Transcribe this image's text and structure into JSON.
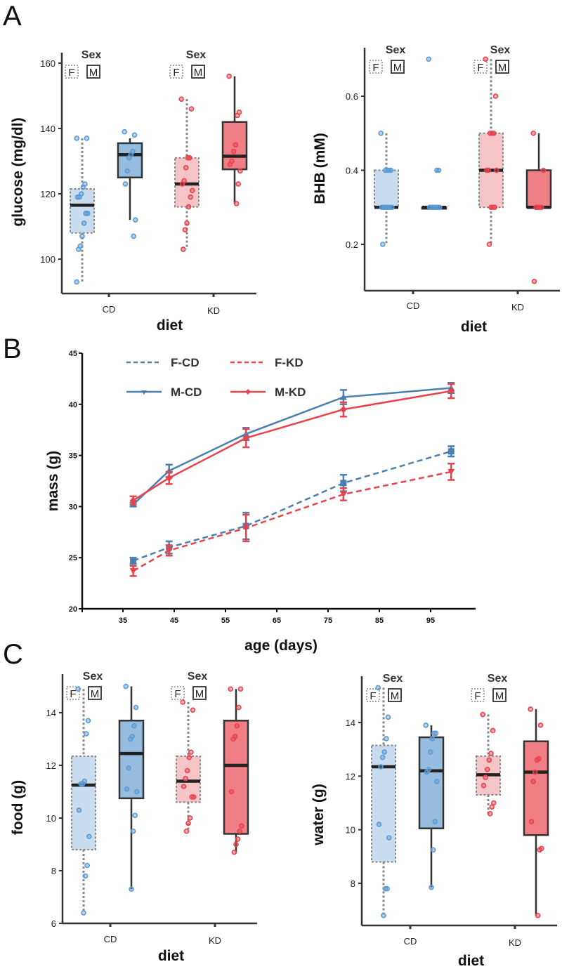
{
  "figure": {
    "panel_letters": [
      "A",
      "B",
      "C"
    ],
    "colors": {
      "cd": "#5b9bd5",
      "cd_line": "#4a7fb0",
      "kd": "#e8434d",
      "f_cd_fill": "#c9dcee",
      "m_cd_fill": "#96bde0",
      "f_kd_fill": "#f5c4c6",
      "m_kd_fill": "#ef7f84",
      "axis": "#333333"
    }
  },
  "chart_data": [
    {
      "id": "glucose",
      "panel": "A",
      "type": "box",
      "title": "",
      "xlabel": "diet",
      "ylabel": "glucose  (mg/dl)",
      "categories": [
        "CD",
        "KD"
      ],
      "yticks": [
        100,
        120,
        140,
        160
      ],
      "ylim": [
        89,
        163
      ],
      "legend": {
        "title": "Sex",
        "keys": [
          "F",
          "M"
        ],
        "placement": "top"
      },
      "groups": [
        {
          "diet": "CD",
          "sex": "F",
          "q1": 108,
          "median": 116.5,
          "q3": 121.5,
          "whisker_low": 93,
          "whisker_high": 137,
          "points": [
            137,
            137,
            123,
            122,
            120,
            119,
            119,
            114,
            114,
            111,
            107,
            104,
            103,
            93
          ]
        },
        {
          "diet": "CD",
          "sex": "M",
          "q1": 125,
          "median": 132,
          "q3": 135.5,
          "whisker_low": 112,
          "whisker_high": 137,
          "points": [
            139,
            138,
            133,
            132,
            131,
            127,
            123,
            112,
            107
          ]
        },
        {
          "diet": "KD",
          "sex": "F",
          "q1": 116,
          "median": 123,
          "q3": 131,
          "whisker_low": 103,
          "whisker_high": 149,
          "points": [
            149,
            146,
            131,
            131,
            128,
            124,
            123,
            121,
            119,
            116,
            111,
            109,
            103
          ]
        },
        {
          "diet": "KD",
          "sex": "M",
          "q1": 127.5,
          "median": 131.5,
          "q3": 142,
          "whisker_low": 117,
          "whisker_high": 156,
          "points": [
            156,
            145,
            144,
            135,
            133,
            130,
            129,
            127,
            123,
            117
          ]
        }
      ]
    },
    {
      "id": "bhb",
      "panel": "A",
      "type": "box",
      "title": "",
      "xlabel": "diet",
      "ylabel": "BHB (mM)",
      "categories": [
        "CD",
        "KD"
      ],
      "yticks": [
        0.2,
        0.4,
        0.6
      ],
      "ylim": [
        0.075,
        0.73
      ],
      "legend": {
        "title": "Sex",
        "keys": [
          "F",
          "M"
        ],
        "placement": "top"
      },
      "groups": [
        {
          "diet": "CD",
          "sex": "F",
          "q1": 0.3,
          "median": 0.3,
          "q3": 0.4,
          "whisker_low": 0.2,
          "whisker_high": 0.5,
          "points": [
            0.5,
            0.4,
            0.4,
            0.4,
            0.4,
            0.3,
            0.3,
            0.3,
            0.3,
            0.3,
            0.3,
            0.3,
            0.2
          ]
        },
        {
          "diet": "CD",
          "sex": "M",
          "q1": 0.3,
          "median": 0.3,
          "q3": 0.3,
          "whisker_low": 0.3,
          "whisker_high": 0.3,
          "points": [
            0.7,
            0.4,
            0.4,
            0.3,
            0.3,
            0.3,
            0.3,
            0.3,
            0.3,
            0.3
          ]
        },
        {
          "diet": "KD",
          "sex": "F",
          "q1": 0.3,
          "median": 0.4,
          "q3": 0.5,
          "whisker_low": 0.2,
          "whisker_high": 0.7,
          "points": [
            0.7,
            0.6,
            0.5,
            0.5,
            0.5,
            0.4,
            0.4,
            0.4,
            0.3,
            0.3,
            0.3,
            0.2
          ]
        },
        {
          "diet": "KD",
          "sex": "M",
          "q1": 0.3,
          "median": 0.3,
          "q3": 0.4,
          "whisker_low": 0.3,
          "whisker_high": 0.5,
          "points": [
            0.5,
            0.4,
            0.3,
            0.3,
            0.3,
            0.3,
            0.1
          ]
        }
      ]
    },
    {
      "id": "mass",
      "panel": "B",
      "type": "line",
      "title": "",
      "xlabel": "age (days)",
      "ylabel": "mass (g)",
      "xticks": [
        35,
        45,
        55,
        65,
        75,
        85,
        95
      ],
      "yticks": [
        20,
        25,
        30,
        35,
        40,
        45
      ],
      "xlim": [
        25.5,
        100
      ],
      "ylim": [
        20,
        45
      ],
      "legend": {
        "placement": "top-left",
        "columns": 2
      },
      "x": [
        37,
        44,
        59,
        78,
        99
      ],
      "series": [
        {
          "name": "F-CD",
          "sex": "F",
          "diet": "CD",
          "dashed": true,
          "marker": "square",
          "values": [
            24.7,
            26.0,
            28.1,
            32.3,
            35.4
          ],
          "errors": [
            0.3,
            0.6,
            1.3,
            0.8,
            0.5
          ]
        },
        {
          "name": "F-KD",
          "sex": "F",
          "diet": "KD",
          "dashed": true,
          "marker": "triangle-down",
          "values": [
            23.7,
            25.7,
            27.9,
            31.2,
            33.4
          ],
          "errors": [
            0.5,
            0.5,
            1.3,
            0.6,
            0.8
          ]
        },
        {
          "name": "M-CD",
          "sex": "M",
          "diet": "CD",
          "dashed": false,
          "marker": "triangle-up",
          "values": [
            30.2,
            33.5,
            37.1,
            40.7,
            41.6
          ],
          "errors": [
            0.2,
            0.6,
            0.6,
            0.7,
            0.5
          ]
        },
        {
          "name": "M-KD",
          "sex": "M",
          "diet": "KD",
          "dashed": false,
          "marker": "diamond",
          "values": [
            30.6,
            32.8,
            36.7,
            39.5,
            41.3
          ],
          "errors": [
            0.4,
            0.6,
            0.9,
            0.7,
            0.7
          ]
        }
      ]
    },
    {
      "id": "food",
      "panel": "C",
      "type": "box",
      "title": "",
      "xlabel": "diet",
      "ylabel": "food (g)",
      "categories": [
        "CD",
        "KD"
      ],
      "yticks": [
        6,
        8,
        10,
        12,
        14
      ],
      "ylim": [
        6,
        15.4
      ],
      "legend": {
        "title": "Sex",
        "keys": [
          "F",
          "M"
        ],
        "placement": "top"
      },
      "groups": [
        {
          "diet": "CD",
          "sex": "F",
          "q1": 8.8,
          "median": 11.25,
          "q3": 12.35,
          "whisker_low": 6.4,
          "whisker_high": 14.9,
          "points": [
            14.9,
            13.7,
            13.2,
            11.4,
            11.3,
            11.3,
            10.3,
            9.3,
            8.2,
            7.8,
            6.4
          ]
        },
        {
          "diet": "CD",
          "sex": "M",
          "q1": 10.75,
          "median": 12.45,
          "q3": 13.7,
          "whisker_low": 7.3,
          "whisker_high": 15.0,
          "points": [
            15.0,
            14.2,
            13.5,
            13.1,
            13.0,
            11.9,
            11.1,
            11.0,
            10.1,
            9.5,
            7.3
          ]
        },
        {
          "diet": "KD",
          "sex": "F",
          "q1": 10.6,
          "median": 11.4,
          "q3": 12.35,
          "whisker_low": 9.5,
          "whisker_high": 14.4,
          "points": [
            14.4,
            14.1,
            12.5,
            12.3,
            11.8,
            11.5,
            11.2,
            10.8,
            10.8,
            10.0,
            9.8,
            9.5
          ]
        },
        {
          "diet": "KD",
          "sex": "M",
          "q1": 9.4,
          "median": 12.0,
          "q3": 13.7,
          "whisker_low": 8.7,
          "whisker_high": 14.9,
          "points": [
            14.9,
            14.9,
            14.2,
            13.5,
            13.1,
            13.0,
            11.0,
            9.7,
            9.5,
            9.2,
            9.0,
            8.7
          ]
        }
      ]
    },
    {
      "id": "water",
      "panel": "C",
      "type": "box",
      "title": "",
      "xlabel": "diet",
      "ylabel": "water (g)",
      "categories": [
        "CD",
        "KD"
      ],
      "yticks": [
        8,
        10,
        12,
        14
      ],
      "ylim": [
        6.5,
        15.6
      ],
      "legend": {
        "title": "Sex",
        "keys": [
          "F",
          "M"
        ],
        "placement": "top"
      },
      "groups": [
        {
          "diet": "CD",
          "sex": "F",
          "q1": 8.8,
          "median": 12.35,
          "q3": 13.15,
          "whisker_low": 6.8,
          "whisker_high": 15.3,
          "points": [
            15.3,
            14.2,
            13.4,
            12.9,
            12.7,
            12.35,
            10.2,
            9.7,
            7.8,
            7.8,
            6.8
          ]
        },
        {
          "diet": "CD",
          "sex": "M",
          "q1": 10.05,
          "median": 12.2,
          "q3": 13.45,
          "whisker_low": 7.85,
          "whisker_high": 13.9,
          "points": [
            13.9,
            13.6,
            13.6,
            13.4,
            12.9,
            12.25,
            12.15,
            11.8,
            10.3,
            9.25,
            7.85
          ]
        },
        {
          "diet": "KD",
          "sex": "F",
          "q1": 11.3,
          "median": 12.05,
          "q3": 12.75,
          "whisker_low": 10.6,
          "whisker_high": 14.3,
          "points": [
            14.3,
            13.7,
            12.85,
            12.6,
            12.25,
            11.95,
            11.65,
            11.0,
            10.85,
            10.6
          ]
        },
        {
          "diet": "KD",
          "sex": "M",
          "q1": 9.8,
          "median": 12.15,
          "q3": 13.3,
          "whisker_low": 6.8,
          "whisker_high": 14.5,
          "points": [
            14.5,
            13.9,
            12.65,
            12.6,
            12.15,
            11.8,
            10.3,
            9.3,
            9.25,
            6.8
          ]
        }
      ]
    }
  ]
}
